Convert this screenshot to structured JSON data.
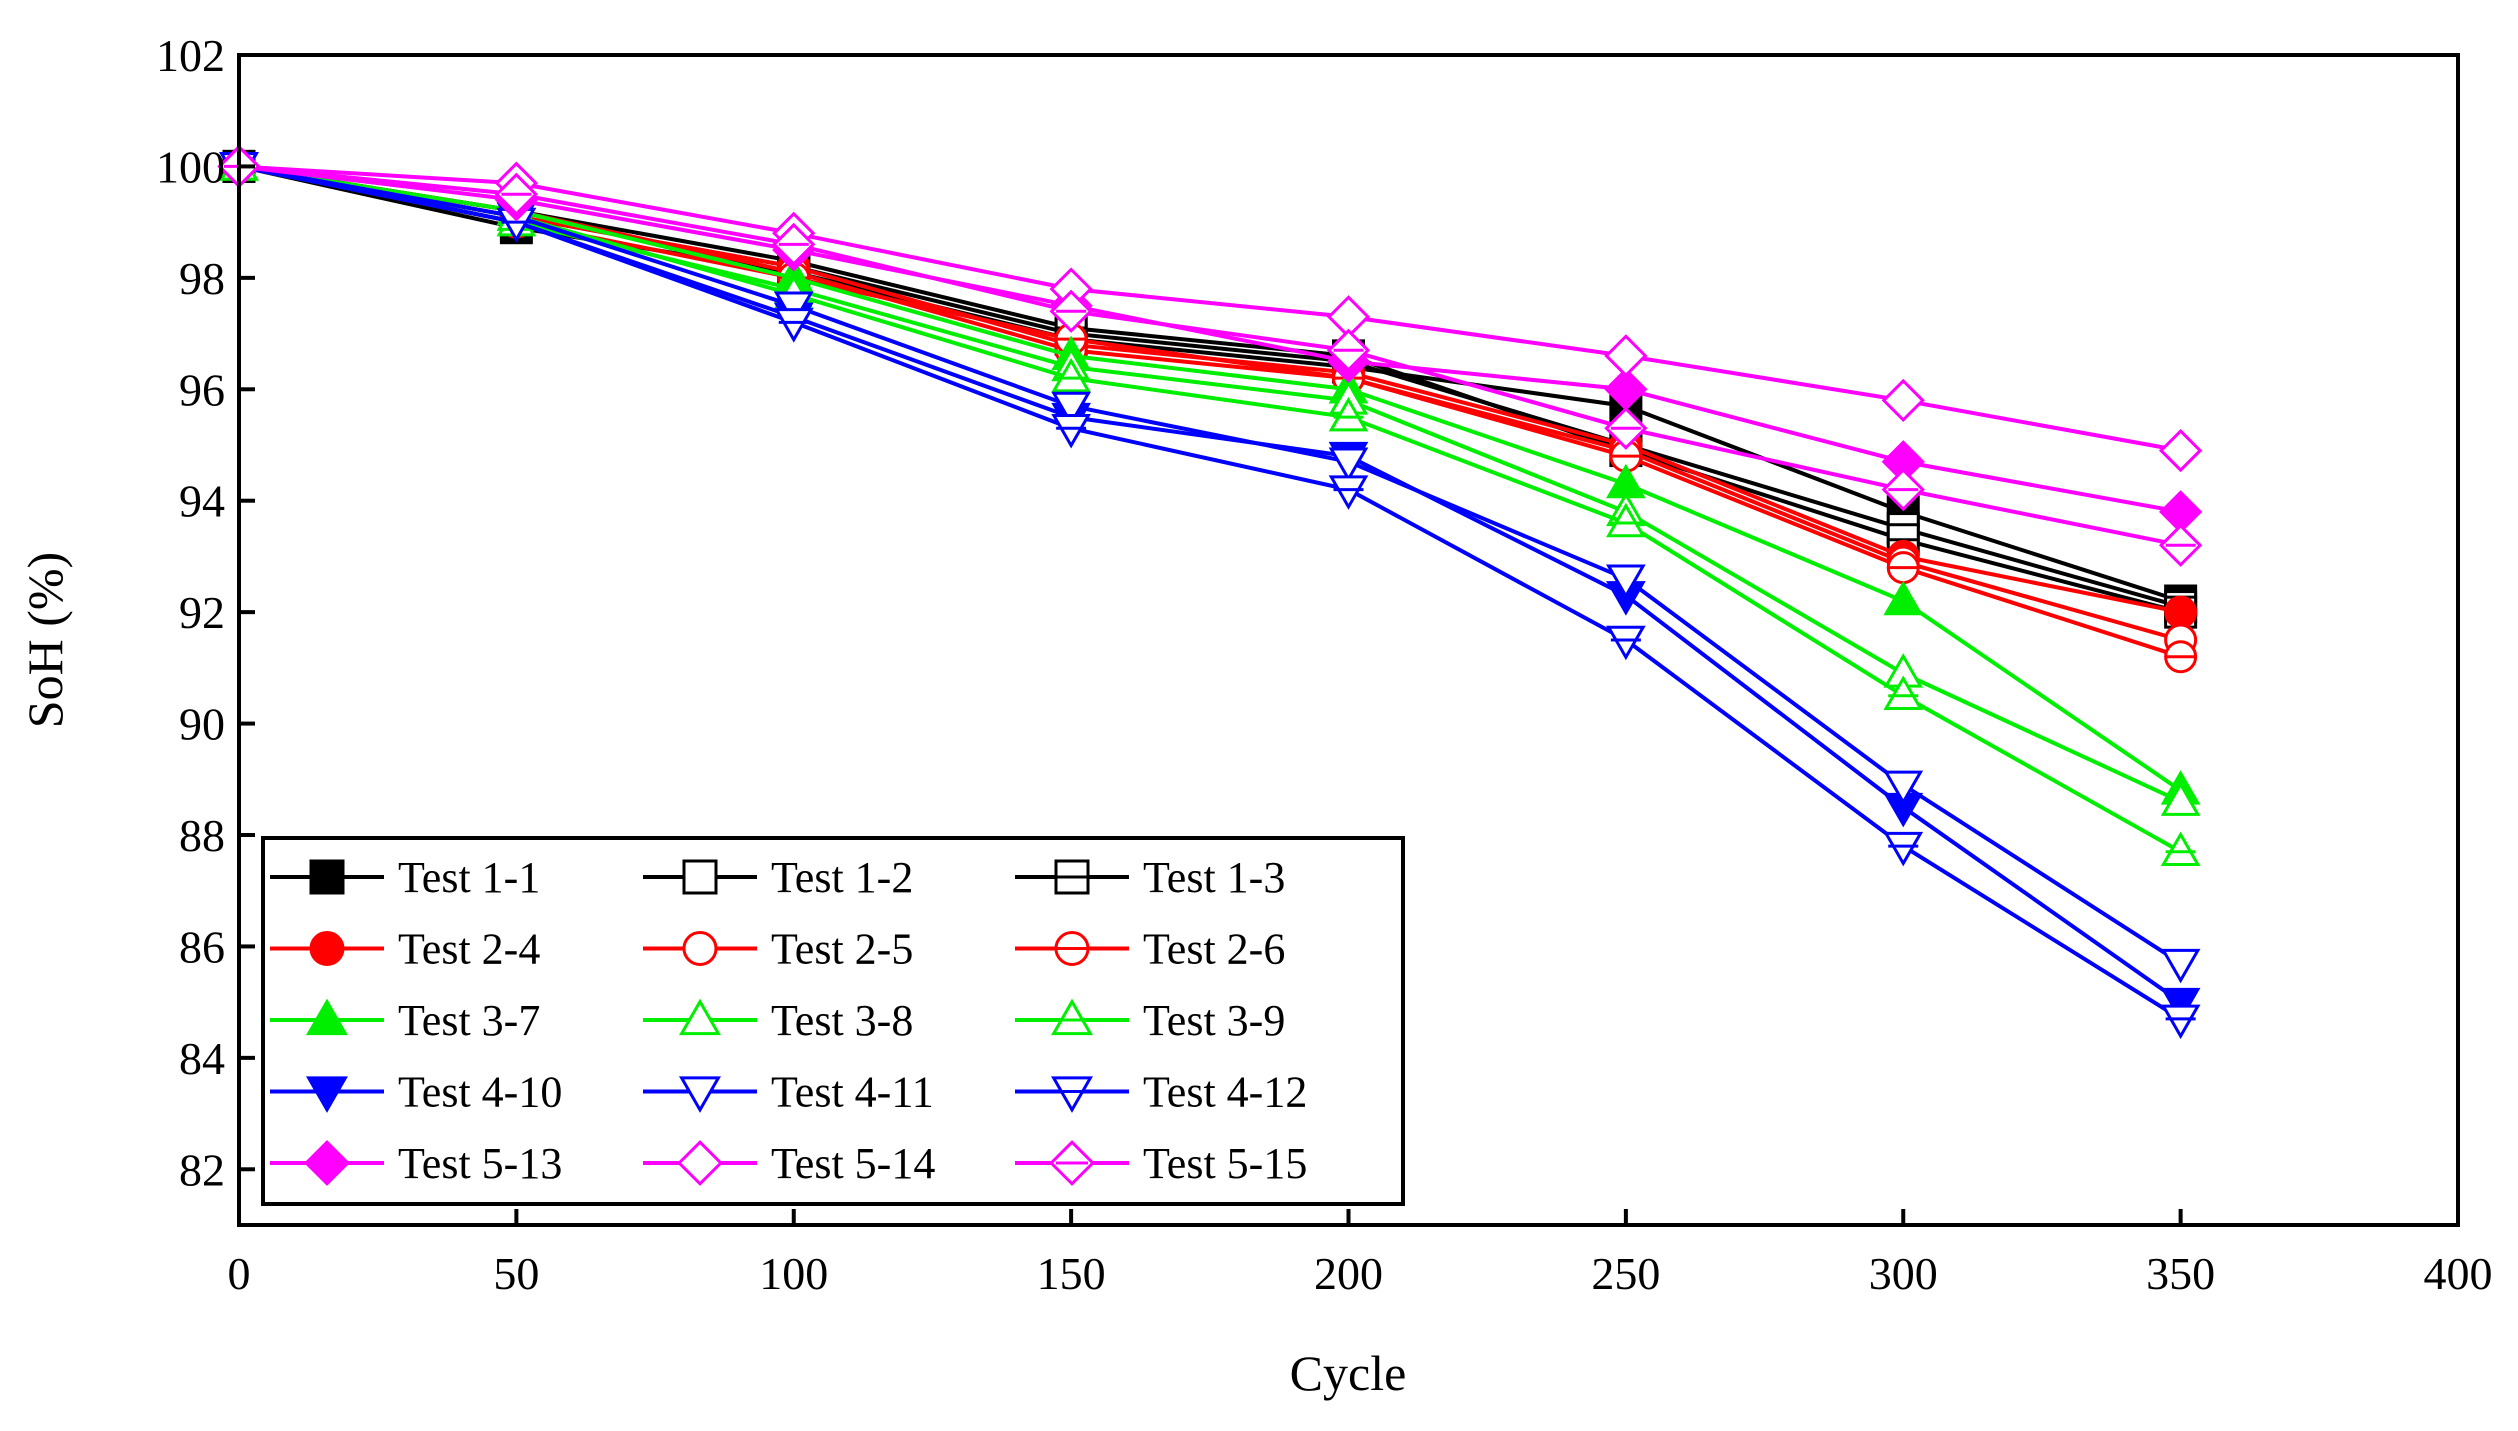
{
  "chart_data": {
    "type": "line",
    "title": "",
    "xlabel": "Cycle",
    "ylabel": "SoH (%)",
    "xlim": [
      0,
      400
    ],
    "ylim": [
      81,
      102
    ],
    "xticks": [
      0,
      50,
      100,
      150,
      200,
      250,
      300,
      350,
      400
    ],
    "yticks": [
      82,
      84,
      86,
      88,
      90,
      92,
      94,
      96,
      98,
      100,
      102
    ],
    "xtick_labels": [
      "0",
      "50",
      "100",
      "150",
      "200",
      "250",
      "300",
      "350",
      "400"
    ],
    "ytick_labels": [
      "82",
      "84",
      "86",
      "88",
      "90",
      "92",
      "94",
      "96",
      "98",
      "100",
      "102"
    ],
    "grid": false,
    "legend_position": "bottom-left",
    "x": [
      0,
      50,
      100,
      150,
      200,
      250,
      300,
      350
    ],
    "series": [
      {
        "name": "Test 1-1",
        "color": "#000000",
        "marker": "square",
        "filled": true,
        "values": [
          100,
          98.9,
          98.1,
          96.9,
          96.4,
          95.7,
          93.8,
          92.2
        ]
      },
      {
        "name": "Test 1-2",
        "color": "#000000",
        "marker": "square",
        "filled": false,
        "values": [
          100,
          99.1,
          98.2,
          97.0,
          96.5,
          95.0,
          93.5,
          92.1
        ]
      },
      {
        "name": "Test 1-3",
        "color": "#000000",
        "marker": "square-h",
        "filled": false,
        "values": [
          100,
          99.2,
          98.3,
          97.1,
          96.6,
          94.9,
          93.3,
          92.0
        ]
      },
      {
        "name": "Test 2-4",
        "color": "#ff0000",
        "marker": "circle",
        "filled": true,
        "values": [
          100,
          99.1,
          98.2,
          96.8,
          96.3,
          95.0,
          93.0,
          92.0
        ]
      },
      {
        "name": "Test 2-5",
        "color": "#ff0000",
        "marker": "circle",
        "filled": false,
        "values": [
          100,
          99.2,
          98.1,
          96.7,
          96.2,
          94.9,
          92.9,
          91.5
        ]
      },
      {
        "name": "Test 2-6",
        "color": "#ff0000",
        "marker": "circle-h",
        "filled": false,
        "values": [
          100,
          99.0,
          98.0,
          96.9,
          96.2,
          94.8,
          92.8,
          91.2
        ]
      },
      {
        "name": "Test 3-7",
        "color": "#00ee00",
        "marker": "triangle-up",
        "filled": true,
        "values": [
          100,
          99.2,
          98.0,
          96.6,
          96.0,
          94.3,
          92.2,
          88.8
        ]
      },
      {
        "name": "Test 3-8",
        "color": "#00ee00",
        "marker": "triangle-up",
        "filled": false,
        "values": [
          100,
          99.0,
          97.8,
          96.4,
          95.8,
          93.8,
          90.9,
          88.6
        ]
      },
      {
        "name": "Test 3-9",
        "color": "#00ee00",
        "marker": "triangle-up-h",
        "filled": false,
        "values": [
          100,
          99.1,
          97.7,
          96.2,
          95.5,
          93.6,
          90.5,
          87.7
        ]
      },
      {
        "name": "Test 4-10",
        "color": "#0000ff",
        "marker": "triangle-down",
        "filled": true,
        "values": [
          100,
          99.0,
          97.3,
          95.5,
          94.8,
          92.3,
          88.5,
          85.0
        ]
      },
      {
        "name": "Test 4-11",
        "color": "#0000ff",
        "marker": "triangle-down",
        "filled": false,
        "values": [
          100,
          99.1,
          97.5,
          95.7,
          94.7,
          92.6,
          88.9,
          85.7
        ]
      },
      {
        "name": "Test 4-12",
        "color": "#0000ff",
        "marker": "triangle-down-h",
        "filled": false,
        "values": [
          100,
          99.0,
          97.2,
          95.3,
          94.2,
          91.5,
          87.8,
          84.7
        ]
      },
      {
        "name": "Test 5-13",
        "color": "#ff00ff",
        "marker": "diamond",
        "filled": true,
        "values": [
          100,
          99.4,
          98.5,
          97.5,
          96.5,
          96.0,
          94.7,
          93.8
        ]
      },
      {
        "name": "Test 5-14",
        "color": "#ff00ff",
        "marker": "diamond",
        "filled": false,
        "values": [
          100,
          99.7,
          98.8,
          97.8,
          97.3,
          96.6,
          95.8,
          94.9
        ]
      },
      {
        "name": "Test 5-15",
        "color": "#ff00ff",
        "marker": "diamond-h",
        "filled": false,
        "values": [
          100,
          99.5,
          98.6,
          97.4,
          96.7,
          95.3,
          94.2,
          93.2
        ]
      }
    ]
  }
}
